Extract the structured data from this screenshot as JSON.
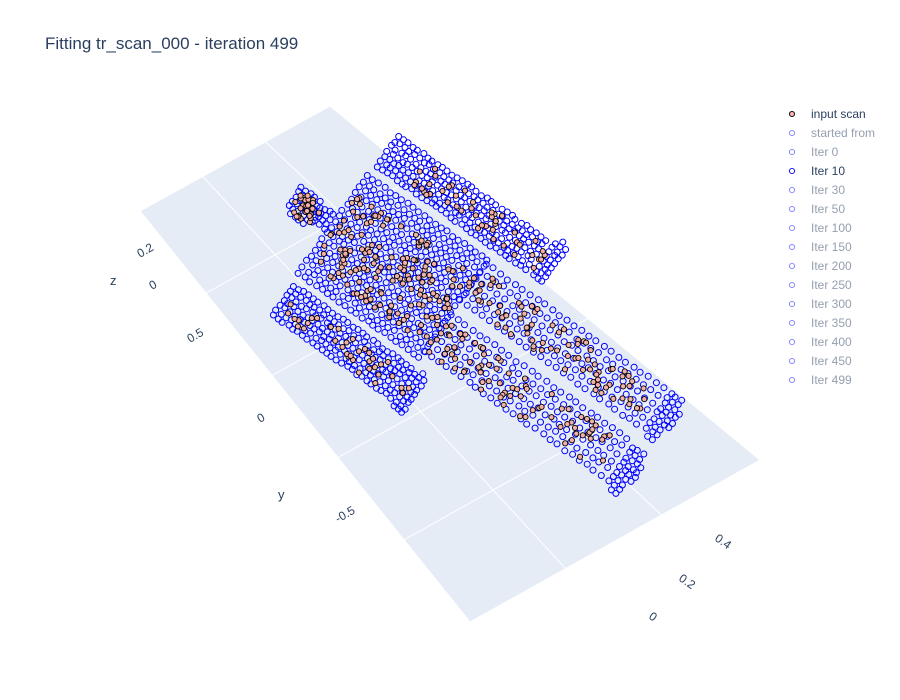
{
  "chart_data": {
    "type": "scatter3d",
    "title": "Fitting tr_scan_000 - iteration 499",
    "axes": {
      "x": {
        "label": "",
        "ticks": [
          "0.4",
          "0.2",
          "0"
        ]
      },
      "y": {
        "label": "y",
        "ticks": [
          "0.5",
          "0",
          "-0.5"
        ]
      },
      "z": {
        "label": "z",
        "ticks": [
          "0.2",
          "0"
        ]
      }
    },
    "legend": {
      "placement": "top-right",
      "items": [
        {
          "label": "input scan",
          "visible": true,
          "marker_fill": "#f4b0a8",
          "marker_line": "#000000"
        },
        {
          "label": "started from",
          "visible": false,
          "marker_fill": "#ffffff",
          "marker_line": "#0000ff"
        },
        {
          "label": "Iter 0",
          "visible": false,
          "marker_fill": "#ffffff",
          "marker_line": "#0000ff"
        },
        {
          "label": "Iter 10",
          "visible": true,
          "marker_fill": "#ffffff",
          "marker_line": "#0000ff"
        },
        {
          "label": "Iter 30",
          "visible": false,
          "marker_fill": "#ffffff",
          "marker_line": "#0000ff"
        },
        {
          "label": "Iter 50",
          "visible": false,
          "marker_fill": "#ffffff",
          "marker_line": "#0000ff"
        },
        {
          "label": "Iter 100",
          "visible": false,
          "marker_fill": "#ffffff",
          "marker_line": "#0000ff"
        },
        {
          "label": "Iter 150",
          "visible": false,
          "marker_fill": "#ffffff",
          "marker_line": "#0000ff"
        },
        {
          "label": "Iter 200",
          "visible": false,
          "marker_fill": "#ffffff",
          "marker_line": "#0000ff"
        },
        {
          "label": "Iter 250",
          "visible": false,
          "marker_fill": "#ffffff",
          "marker_line": "#0000ff"
        },
        {
          "label": "Iter 300",
          "visible": false,
          "marker_fill": "#ffffff",
          "marker_line": "#0000ff"
        },
        {
          "label": "Iter 350",
          "visible": false,
          "marker_fill": "#ffffff",
          "marker_line": "#0000ff"
        },
        {
          "label": "Iter 400",
          "visible": false,
          "marker_fill": "#ffffff",
          "marker_line": "#0000ff"
        },
        {
          "label": "Iter 450",
          "visible": false,
          "marker_fill": "#ffffff",
          "marker_line": "#0000ff"
        },
        {
          "label": "Iter 499",
          "visible": false,
          "marker_fill": "#ffffff",
          "marker_line": "#0000ff"
        }
      ]
    },
    "colors": {
      "scene_background": "#e5ecf6",
      "grid": "#ffffff",
      "text": "#2a3f5f",
      "mesh_points": "#0000ff",
      "scan_fill": "#f4b0a8",
      "scan_edge": "#000000"
    }
  }
}
